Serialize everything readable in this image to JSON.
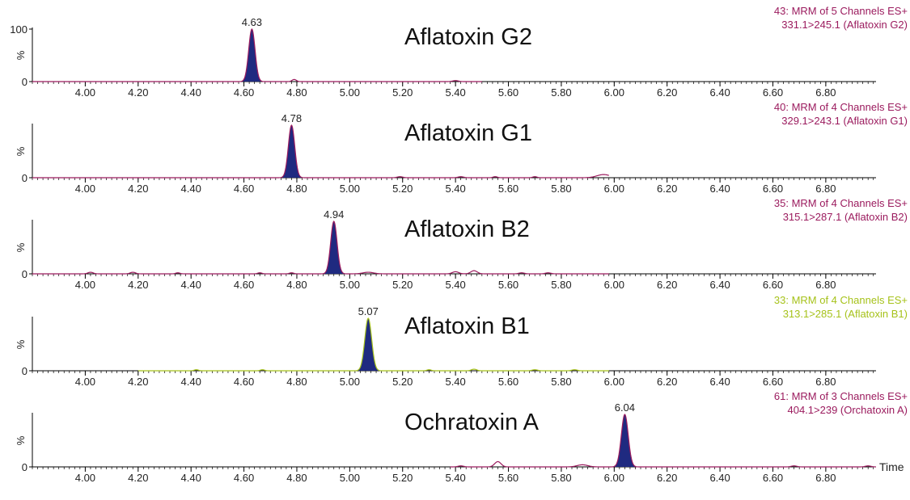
{
  "chart_data": [
    {
      "type": "line",
      "title": "Aflatoxin G2",
      "channel_line1": "43: MRM of 5 Channels ES+",
      "channel_line2": "331.1>245.1 (Aflatoxin G2)",
      "channel_color": "#9b1b5e",
      "peak_label": "4.63",
      "peak_rt": 4.63,
      "ylabel": "%",
      "y_ticks": [
        "100",
        "0"
      ],
      "ylim": [
        0,
        100
      ],
      "xlim": [
        3.8,
        6.99
      ],
      "x_ticks": [
        "4.00",
        "4.20",
        "4.40",
        "4.60",
        "4.80",
        "5.00",
        "5.20",
        "5.40",
        "5.60",
        "5.80",
        "6.00",
        "6.20",
        "6.40",
        "6.60",
        "6.80"
      ],
      "x_tick_values": [
        4.0,
        4.2,
        4.4,
        4.6,
        4.8,
        5.0,
        5.2,
        5.4,
        5.6,
        5.8,
        6.0,
        6.2,
        6.4,
        6.6,
        6.8
      ],
      "trace_range": [
        3.8,
        5.5
      ],
      "peaks": [
        {
          "rt": 4.63,
          "height": 100,
          "width": 0.012
        }
      ],
      "noise": [
        {
          "rt": 4.79,
          "height": 4,
          "width": 0.008
        },
        {
          "rt": 5.4,
          "height": 2,
          "width": 0.01
        }
      ]
    },
    {
      "type": "line",
      "title": "Aflatoxin G1",
      "channel_line1": "40: MRM of 4 Channels ES+",
      "channel_line2": "329.1>243.1 (Aflatoxin G1)",
      "channel_color": "#9b1b5e",
      "peak_label": "4.78",
      "peak_rt": 4.78,
      "ylabel": "%",
      "y_ticks": [
        "0"
      ],
      "ylim": [
        0,
        100
      ],
      "xlim": [
        3.8,
        6.99
      ],
      "x_ticks": [
        "4.00",
        "4.20",
        "4.40",
        "4.60",
        "4.80",
        "5.00",
        "5.20",
        "5.40",
        "5.60",
        "5.80",
        "6.00",
        "6.20",
        "6.40",
        "6.60",
        "6.80"
      ],
      "x_tick_values": [
        4.0,
        4.2,
        4.4,
        4.6,
        4.8,
        5.0,
        5.2,
        5.4,
        5.6,
        5.8,
        6.0,
        6.2,
        6.4,
        6.6,
        6.8
      ],
      "trace_range": [
        3.8,
        5.98
      ],
      "peaks": [
        {
          "rt": 4.78,
          "height": 100,
          "width": 0.012
        }
      ],
      "noise": [
        {
          "rt": 5.19,
          "height": 2,
          "width": 0.01
        },
        {
          "rt": 5.42,
          "height": 2,
          "width": 0.01
        },
        {
          "rt": 5.55,
          "height": 2,
          "width": 0.008
        },
        {
          "rt": 5.7,
          "height": 2,
          "width": 0.008
        },
        {
          "rt": 5.96,
          "height": 6,
          "width": 0.025
        }
      ]
    },
    {
      "type": "line",
      "title": "Aflatoxin B2",
      "channel_line1": "35: MRM of 4 Channels ES+",
      "channel_line2": "315.1>287.1 (Aflatoxin B2)",
      "channel_color": "#9b1b5e",
      "peak_label": "4.94",
      "peak_rt": 4.94,
      "ylabel": "%",
      "y_ticks": [
        "0"
      ],
      "ylim": [
        0,
        100
      ],
      "xlim": [
        3.8,
        6.99
      ],
      "x_ticks": [
        "4.00",
        "4.20",
        "4.40",
        "4.60",
        "4.80",
        "5.00",
        "5.20",
        "5.40",
        "5.60",
        "5.80",
        "6.00",
        "6.20",
        "6.40",
        "6.60",
        "6.80"
      ],
      "x_tick_values": [
        4.0,
        4.2,
        4.4,
        4.6,
        4.8,
        5.0,
        5.2,
        5.4,
        5.6,
        5.8,
        6.0,
        6.2,
        6.4,
        6.6,
        6.8
      ],
      "trace_range": [
        3.8,
        5.98
      ],
      "peaks": [
        {
          "rt": 4.94,
          "height": 100,
          "width": 0.012
        }
      ],
      "noise": [
        {
          "rt": 4.02,
          "height": 3,
          "width": 0.01
        },
        {
          "rt": 4.18,
          "height": 3,
          "width": 0.01
        },
        {
          "rt": 4.35,
          "height": 2,
          "width": 0.008
        },
        {
          "rt": 4.66,
          "height": 2,
          "width": 0.008
        },
        {
          "rt": 4.78,
          "height": 2,
          "width": 0.008
        },
        {
          "rt": 5.07,
          "height": 3,
          "width": 0.02
        },
        {
          "rt": 5.4,
          "height": 4,
          "width": 0.012
        },
        {
          "rt": 5.47,
          "height": 6,
          "width": 0.012
        },
        {
          "rt": 5.65,
          "height": 2,
          "width": 0.01
        },
        {
          "rt": 5.75,
          "height": 2,
          "width": 0.01
        }
      ]
    },
    {
      "type": "line",
      "title": "Aflatoxin B1",
      "channel_line1": "33: MRM of 4 Channels ES+",
      "channel_line2": "313.1>285.1 (Aflatoxin B1)",
      "channel_color": "#a6c21a",
      "peak_label": "5.07",
      "peak_rt": 5.07,
      "ylabel": "%",
      "y_ticks": [
        "0"
      ],
      "ylim": [
        0,
        100
      ],
      "xlim": [
        3.8,
        6.99
      ],
      "x_ticks": [
        "4.00",
        "4.20",
        "4.40",
        "4.60",
        "4.80",
        "5.00",
        "5.20",
        "5.40",
        "5.60",
        "5.80",
        "6.00",
        "6.20",
        "6.40",
        "6.60",
        "6.80"
      ],
      "x_tick_values": [
        4.0,
        4.2,
        4.4,
        4.6,
        4.8,
        5.0,
        5.2,
        5.4,
        5.6,
        5.8,
        6.0,
        6.2,
        6.4,
        6.6,
        6.8
      ],
      "trace_range": [
        4.2,
        5.98
      ],
      "peaks": [
        {
          "rt": 5.07,
          "height": 100,
          "width": 0.013
        }
      ],
      "noise": [
        {
          "rt": 4.42,
          "height": 2,
          "width": 0.008
        },
        {
          "rt": 4.67,
          "height": 2,
          "width": 0.008
        },
        {
          "rt": 5.3,
          "height": 2,
          "width": 0.008
        },
        {
          "rt": 5.47,
          "height": 3,
          "width": 0.01
        },
        {
          "rt": 5.7,
          "height": 2,
          "width": 0.01
        },
        {
          "rt": 5.85,
          "height": 2,
          "width": 0.01
        }
      ]
    },
    {
      "type": "line",
      "title": "Ochratoxin A",
      "channel_line1": "61: MRM of 3 Channels ES+",
      "channel_line2": "404.1>239 (Orchatoxin A)",
      "channel_color": "#9b1b5e",
      "peak_label": "6.04",
      "peak_rt": 6.04,
      "ylabel": "%",
      "y_ticks": [
        "0"
      ],
      "ylim": [
        0,
        100
      ],
      "xlim": [
        3.8,
        6.99
      ],
      "x_ticks": [
        "4.00",
        "4.20",
        "4.40",
        "4.60",
        "4.80",
        "5.00",
        "5.20",
        "5.40",
        "5.60",
        "5.80",
        "6.00",
        "6.20",
        "6.40",
        "6.60",
        "6.80"
      ],
      "x_tick_values": [
        4.0,
        4.2,
        4.4,
        4.6,
        4.8,
        5.0,
        5.2,
        5.4,
        5.6,
        5.8,
        6.0,
        6.2,
        6.4,
        6.6,
        6.8
      ],
      "trace_range": [
        5.38,
        6.99
      ],
      "peaks": [
        {
          "rt": 6.04,
          "height": 100,
          "width": 0.013
        }
      ],
      "noise": [
        {
          "rt": 5.42,
          "height": 2,
          "width": 0.01
        },
        {
          "rt": 5.56,
          "height": 10,
          "width": 0.012
        },
        {
          "rt": 5.88,
          "height": 4,
          "width": 0.02
        },
        {
          "rt": 6.68,
          "height": 2,
          "width": 0.01
        },
        {
          "rt": 6.96,
          "height": 2,
          "width": 0.01
        }
      ],
      "xlabel": "Time"
    }
  ]
}
